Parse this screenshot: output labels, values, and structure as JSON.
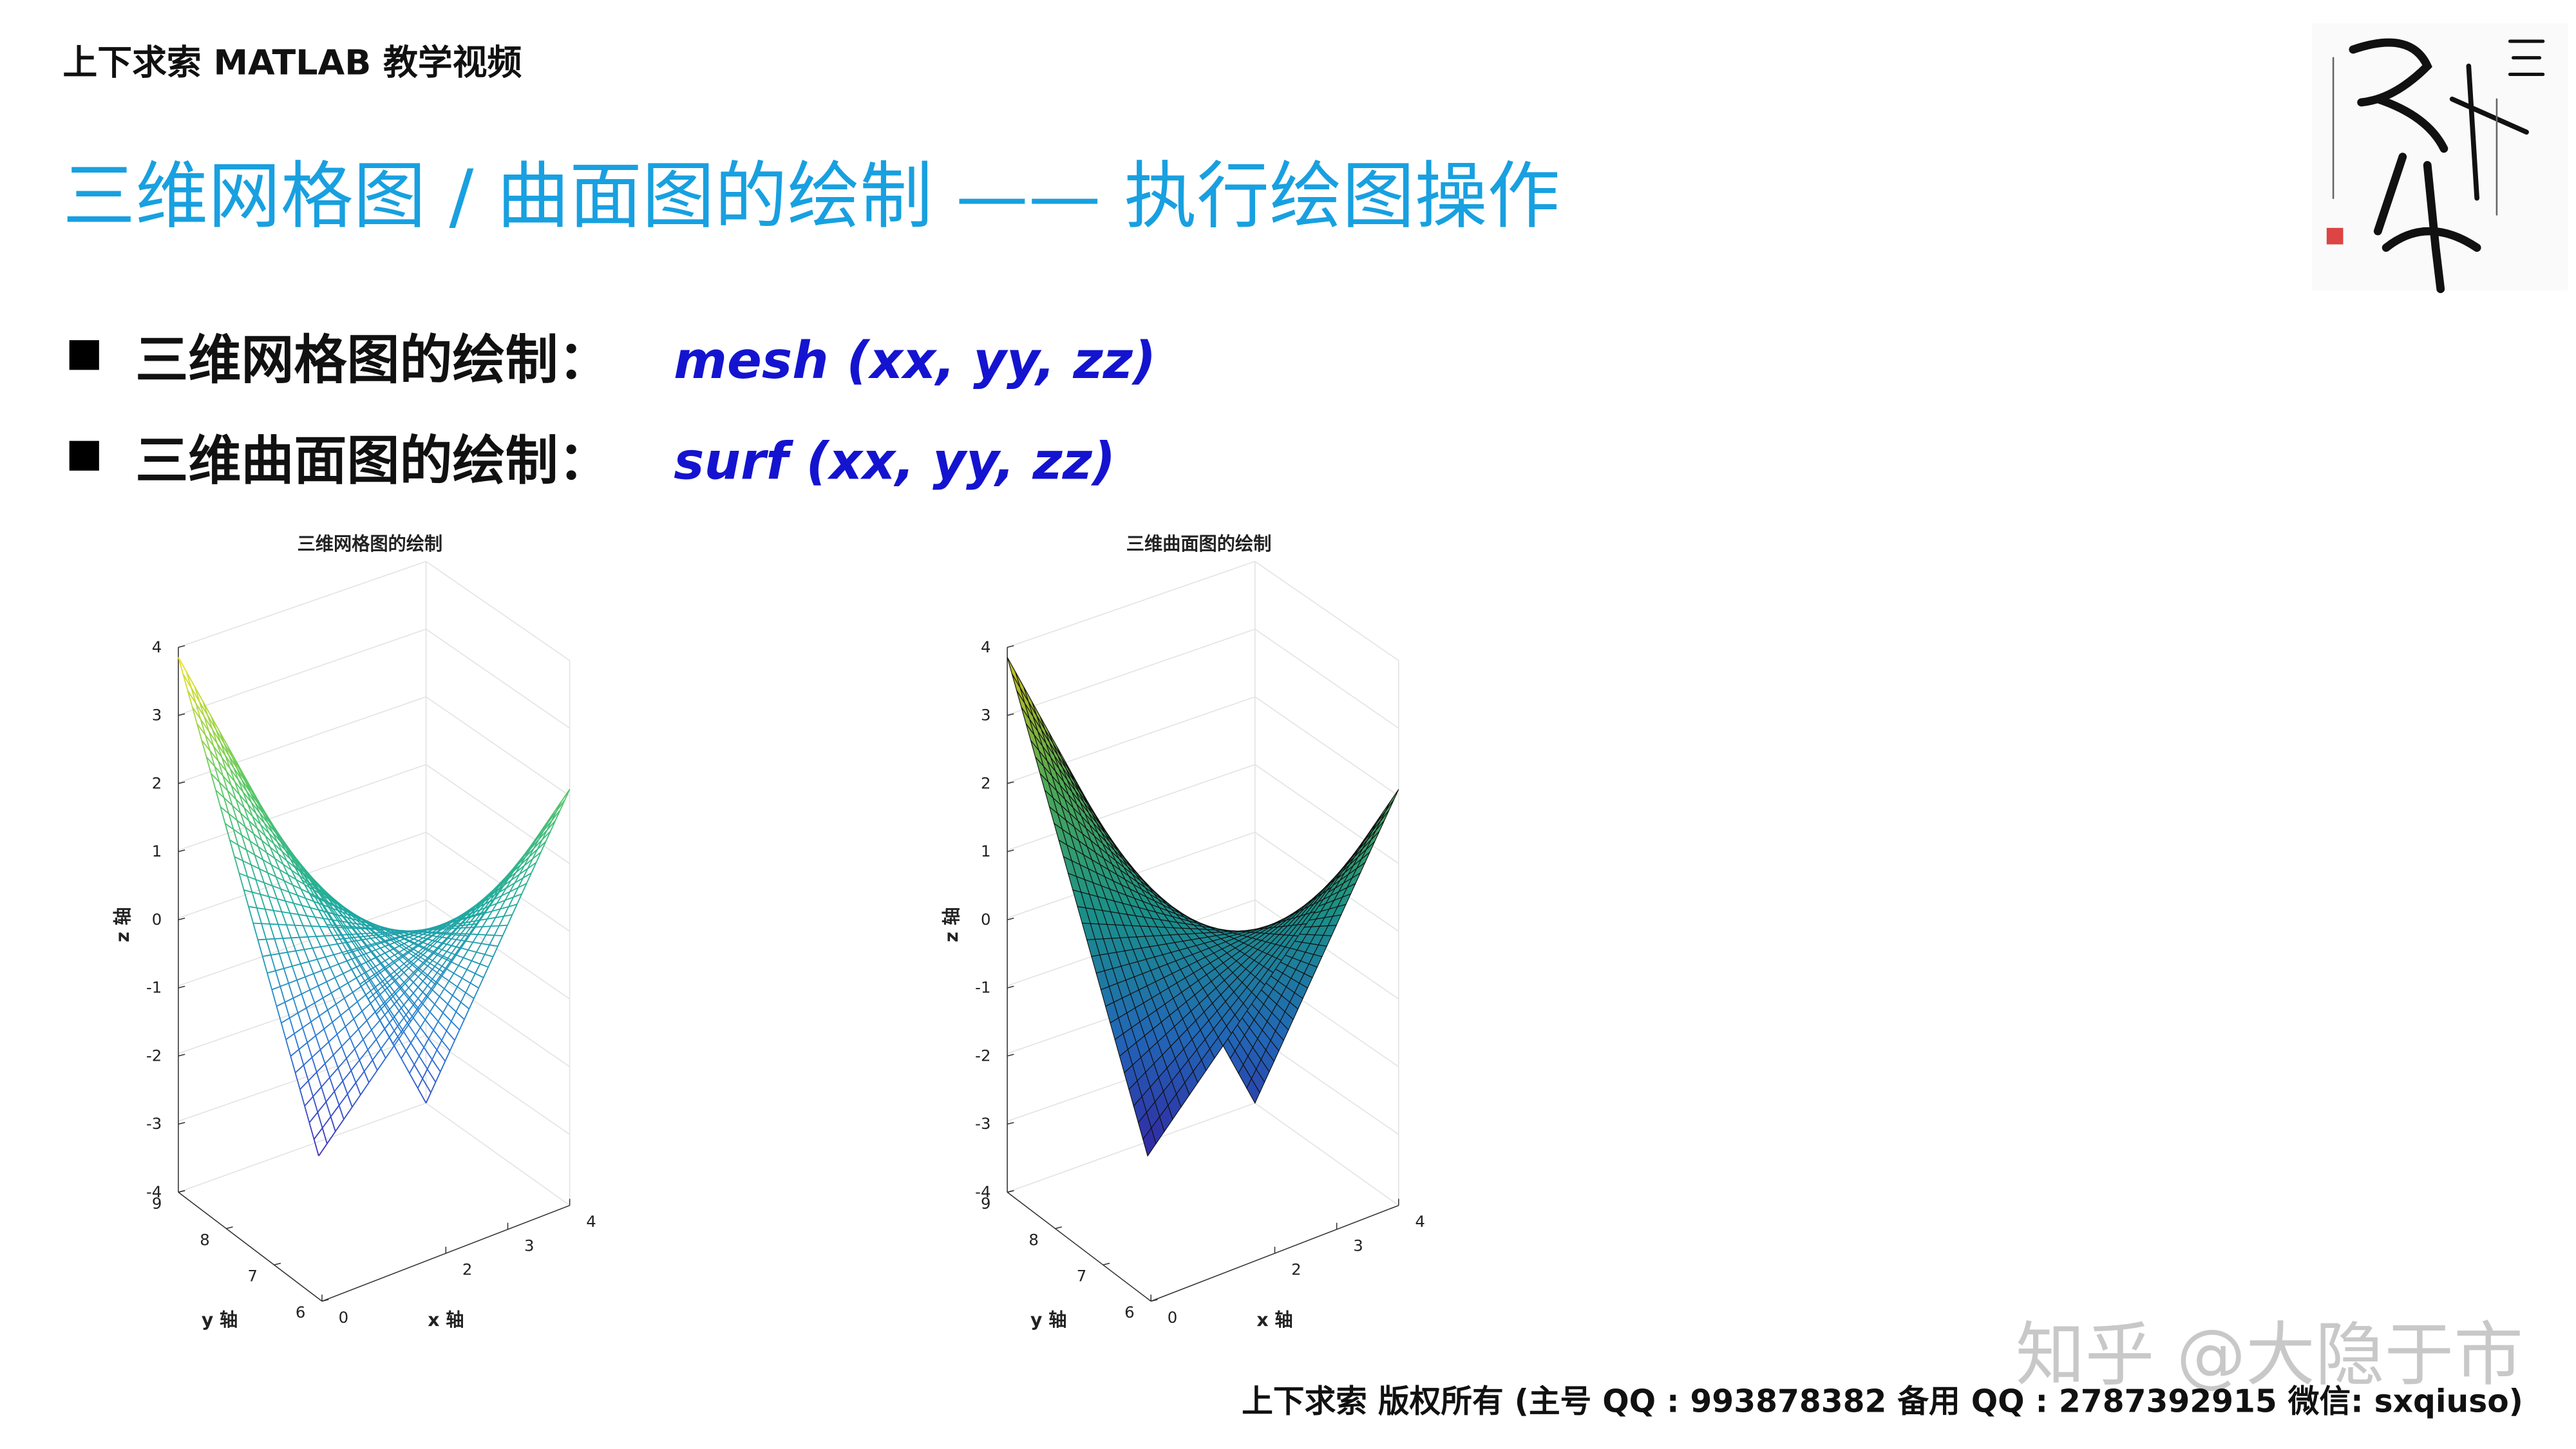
{
  "header": {
    "course": "上下求索 MATLAB 教学视频",
    "title": "三维网格图 / 曲面图的绘制 —— 执行绘图操作"
  },
  "bullets": [
    {
      "label": "三维网格图的绘制：",
      "code": "mesh (xx, yy, zz)"
    },
    {
      "label": "三维曲面图的绘制：",
      "code": "surf (xx, yy, zz)"
    }
  ],
  "plots": [
    {
      "kind": "mesh",
      "title": "三维网格图的绘制",
      "xlabel": "x 轴",
      "ylabel": "y 轴",
      "zlabel": "z 轴",
      "xticks": [
        0,
        2,
        3,
        4
      ],
      "yticks": [
        6,
        7,
        8,
        9
      ],
      "zticks": [
        -4,
        -3,
        -2,
        -1,
        0,
        1,
        2,
        3,
        4
      ]
    },
    {
      "kind": "surf",
      "title": "三维曲面图的绘制",
      "xlabel": "x 轴",
      "ylabel": "y 轴",
      "zlabel": "z 轴",
      "xticks": [
        0,
        2,
        3,
        4
      ],
      "yticks": [
        6,
        7,
        8,
        9
      ],
      "zticks": [
        -4,
        -3,
        -2,
        -1,
        0,
        1,
        2,
        3,
        4
      ]
    }
  ],
  "footer": {
    "copyright": "上下求索  版权所有  (主号 QQ : 993878382   备用 QQ : 2787392915   微信: sxqiuso)"
  },
  "watermark": "知乎 @大隐于市"
}
